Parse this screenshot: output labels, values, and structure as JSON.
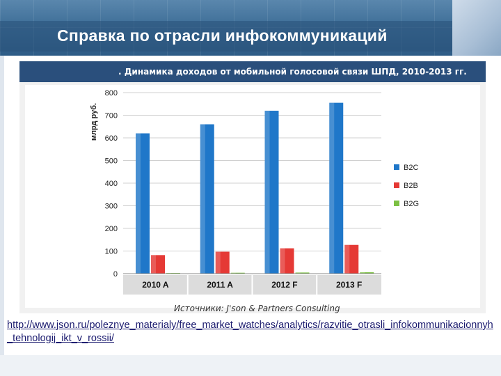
{
  "header": {
    "title": "Справка по отрасли инфокоммуникаций"
  },
  "source": "Источники: J'son & Partners Consulting",
  "link": "http://www.json.ru/poleznye_materialy/free_market_watches/analytics/razvitie_otrasli_infokommunikacionnyh_tehnologij_ikt_v_rossii/",
  "colors": {
    "B2C": "#1f77c9",
    "B2B": "#e53935",
    "B2G": "#7cc043"
  },
  "chart_data": {
    "type": "bar",
    "title": ". Динамика доходов от мобильной голосовой связи ШПД, 2010-2013 гг.",
    "xlabel": "",
    "ylabel": "млрд руб.",
    "ylim": [
      0,
      800
    ],
    "yticks": [
      0,
      100,
      200,
      300,
      400,
      500,
      600,
      700,
      800
    ],
    "categories": [
      "2010 A",
      "2011 A",
      "2012 F",
      "2013 F"
    ],
    "series": [
      {
        "name": "B2C",
        "values": [
          620,
          660,
          720,
          755
        ]
      },
      {
        "name": "B2B",
        "values": [
          82,
          97,
          112,
          127
        ]
      },
      {
        "name": "B2G",
        "values": [
          3,
          4,
          5,
          6
        ]
      }
    ],
    "legend": "right",
    "grid": true
  }
}
